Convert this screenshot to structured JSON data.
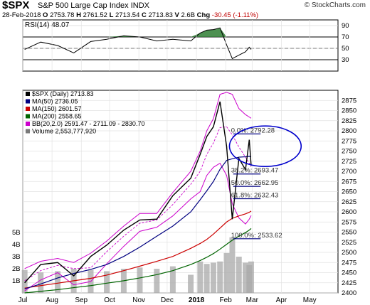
{
  "header": {
    "symbol": "$SPX",
    "name": "S&P 500 Large Cap Index",
    "exchange": "INDX",
    "credit": "© StockCharts.com",
    "date": "28-Feb-2018",
    "open_label": "O",
    "open": "2753.78",
    "high_label": "H",
    "high": "2761.52",
    "low_label": "L",
    "low": "2713.54",
    "close_label": "C",
    "close": "2713.83",
    "volume_label": "V",
    "volume": "2.6B",
    "change_label": "Chg",
    "change": "-30.45 (-1.11%)"
  },
  "colors": {
    "price": "#000000",
    "ma50": "#000080",
    "ma150": "#cc0000",
    "ma200": "#006400",
    "bollinger": "#cc00cc",
    "volume": "#a8a8a8",
    "rsi_fill": "#2e7d32",
    "annotation": "#000080"
  },
  "chart_data": [
    {
      "type": "line",
      "title": "RSI(14) 48.07",
      "ylim": [
        10,
        100
      ],
      "yticks": [
        90,
        70,
        50,
        30
      ],
      "guides": [
        30,
        70
      ],
      "grid": true,
      "series": [
        {
          "name": "RSI(14)",
          "dates": [
            "2017-07-03",
            "2017-07-20",
            "2017-08-07",
            "2017-08-24",
            "2017-09-11",
            "2017-09-28",
            "2017-10-16",
            "2017-11-02",
            "2017-11-20",
            "2017-12-07",
            "2017-12-26",
            "2018-01-05",
            "2018-01-12",
            "2018-01-19",
            "2018-01-26",
            "2018-02-02",
            "2018-02-08",
            "2018-02-15",
            "2018-02-22",
            "2018-02-26",
            "2018-02-28"
          ],
          "values": [
            48,
            61,
            55,
            42,
            62,
            66,
            72,
            70,
            63,
            66,
            63,
            77,
            82,
            83,
            86,
            56,
            32,
            38,
            44,
            52,
            48
          ]
        }
      ]
    },
    {
      "type": "line",
      "title": "$SPX (Daily) 2713.83",
      "xlim": [
        "2017-07-01",
        "2018-05-31"
      ],
      "ylim": [
        2400,
        2900
      ],
      "xticks": [
        {
          "date": "2017-07-01",
          "label": "Jul"
        },
        {
          "date": "2017-08-01",
          "label": "Aug"
        },
        {
          "date": "2017-09-01",
          "label": "Sep"
        },
        {
          "date": "2017-10-01",
          "label": "Oct"
        },
        {
          "date": "2017-11-01",
          "label": "Nov"
        },
        {
          "date": "2017-12-01",
          "label": "Dec"
        },
        {
          "date": "2018-01-01",
          "label": "2018"
        },
        {
          "date": "2018-02-01",
          "label": "Feb"
        },
        {
          "date": "2018-03-01",
          "label": "Mar"
        },
        {
          "date": "2018-04-01",
          "label": "Apr"
        },
        {
          "date": "2018-05-01",
          "label": "May"
        }
      ],
      "yticks": [
        2400,
        2425,
        2450,
        2475,
        2500,
        2525,
        2550,
        2575,
        2600,
        2625,
        2650,
        2675,
        2700,
        2725,
        2750,
        2775,
        2800,
        2825,
        2850,
        2875
      ],
      "volume_ticks": [
        "1B",
        "2B",
        "3B",
        "4B",
        "5B"
      ],
      "volume_lim": [
        0,
        6
      ],
      "grid": true,
      "legend": [
        {
          "label": "$SPX (Daily) 2713.83",
          "color": "#000000"
        },
        {
          "label": "MA(50) 2736.05",
          "color": "#000080"
        },
        {
          "label": "MA(150) 2601.57",
          "color": "#cc0000"
        },
        {
          "label": "MA(200) 2558.65",
          "color": "#006400"
        },
        {
          "label": "BB(20,2.0) 2591.47 - 2711.09 - 2830.70",
          "color": "#cc00cc"
        },
        {
          "label": "Volume 2,553,777,920",
          "color": "#7a7a7a"
        }
      ],
      "dates": [
        "2017-07-03",
        "2017-07-20",
        "2017-08-07",
        "2017-08-24",
        "2017-09-11",
        "2017-09-28",
        "2017-10-16",
        "2017-11-02",
        "2017-11-20",
        "2017-12-07",
        "2017-12-26",
        "2018-01-05",
        "2018-01-12",
        "2018-01-19",
        "2018-01-26",
        "2018-02-02",
        "2018-02-08",
        "2018-02-15",
        "2018-02-22",
        "2018-02-26",
        "2018-02-28"
      ],
      "series": [
        {
          "name": "$SPX (Daily)",
          "values": [
            2425,
            2470,
            2475,
            2442,
            2490,
            2518,
            2555,
            2580,
            2582,
            2640,
            2683,
            2742,
            2786,
            2810,
            2872,
            2762,
            2582,
            2732,
            2704,
            2778,
            2714
          ]
        },
        {
          "name": "MA(50)",
          "values": [
            2410,
            2422,
            2437,
            2448,
            2458,
            2470,
            2490,
            2513,
            2540,
            2565,
            2600,
            2630,
            2652,
            2675,
            2705,
            2727,
            2731,
            2735,
            2736,
            2737,
            2736
          ]
        },
        {
          "name": "MA(150)",
          "values": [
            2412,
            2418,
            2424,
            2430,
            2436,
            2444,
            2455,
            2466,
            2478,
            2490,
            2510,
            2522,
            2532,
            2545,
            2560,
            2575,
            2584,
            2590,
            2595,
            2599,
            2602
          ]
        },
        {
          "name": "MA(200)",
          "values": [
            2400,
            2404,
            2408,
            2413,
            2418,
            2424,
            2430,
            2437,
            2445,
            2455,
            2470,
            2480,
            2488,
            2497,
            2508,
            2520,
            2530,
            2540,
            2549,
            2555,
            2559
          ]
        },
        {
          "name": "BB upper",
          "values": [
            2460,
            2478,
            2485,
            2475,
            2498,
            2528,
            2565,
            2596,
            2596,
            2648,
            2700,
            2750,
            2800,
            2830,
            2890,
            2895,
            2890,
            2855,
            2840,
            2834,
            2831
          ]
        },
        {
          "name": "BB mid",
          "values": [
            2430,
            2455,
            2468,
            2460,
            2462,
            2502,
            2540,
            2572,
            2580,
            2618,
            2668,
            2700,
            2742,
            2770,
            2808,
            2810,
            2790,
            2760,
            2735,
            2720,
            2711
          ]
        },
        {
          "name": "BB lower",
          "values": [
            2405,
            2432,
            2450,
            2420,
            2428,
            2472,
            2515,
            2552,
            2562,
            2590,
            2632,
            2650,
            2690,
            2710,
            2720,
            2690,
            2620,
            2585,
            2570,
            2582,
            2591
          ]
        }
      ],
      "volume": [
        1.9,
        1.7,
        1.8,
        2.0,
        1.9,
        1.8,
        2.0,
        2.1,
        2.0,
        2.2,
        1.5,
        2.6,
        2.4,
        2.5,
        2.6,
        3.3,
        4.6,
        3.0,
        2.5,
        2.3,
        2.6
      ],
      "fib_levels": [
        {
          "label": "0.0%: 2792.28",
          "value": 2792.28
        },
        {
          "label": "38.2%: 2693.47",
          "value": 2693.47
        },
        {
          "label": "50.0%: 2662.95",
          "value": 2662.95
        },
        {
          "label": "61.8%: 2632.43",
          "value": 2632.43
        },
        {
          "label": "100.0%: 2533.62",
          "value": 2533.62
        }
      ],
      "annotation": {
        "type": "ellipse",
        "color": "#0000cc",
        "center_date": "2018-03-15",
        "center_value": 2762,
        "half_width_days": 38,
        "half_height_value": 50
      }
    }
  ]
}
